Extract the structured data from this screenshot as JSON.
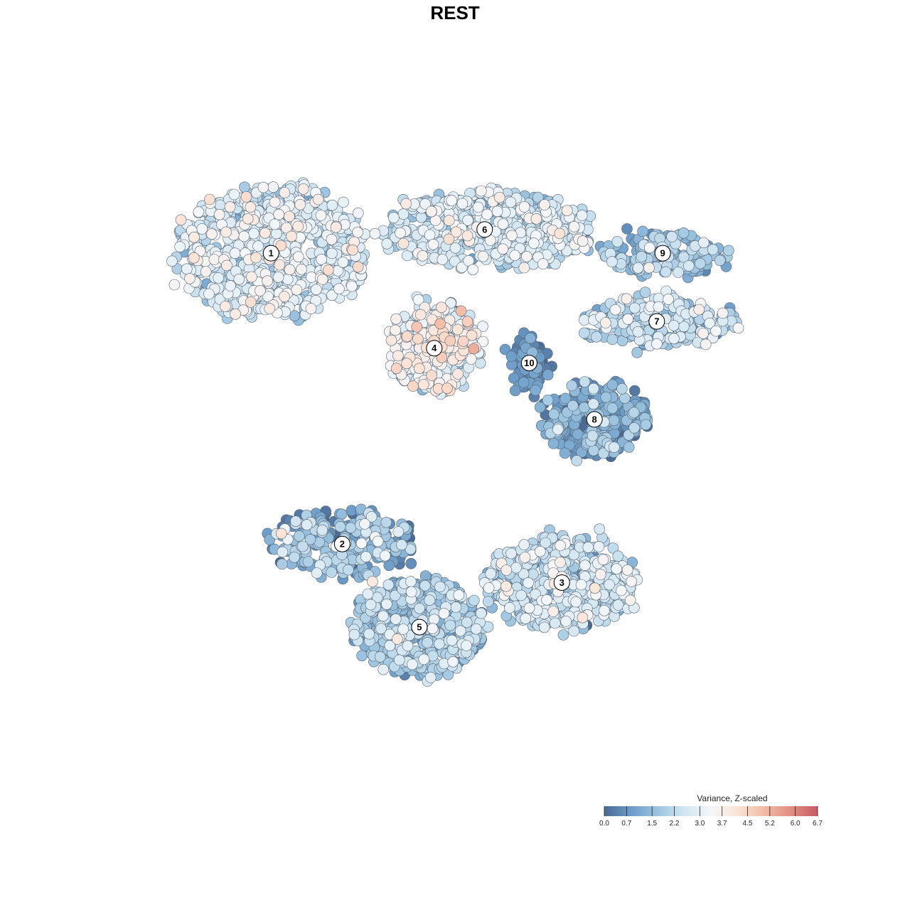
{
  "chart_data": {
    "type": "scatter",
    "title": "REST",
    "xlabel": "",
    "ylabel": "",
    "grid": false,
    "legend_position": "bottom-right",
    "color_scale": {
      "title": "Variance, Z-scaled",
      "min": 0.0,
      "max": 6.7,
      "ticks": [
        0.0,
        0.7,
        1.5,
        2.2,
        3.0,
        3.7,
        4.5,
        5.2,
        6.0,
        6.7
      ],
      "tick_labels": [
        "0.0",
        "0.7",
        "1.5",
        "2.2",
        "3.0",
        "3.7",
        "4.5",
        "5.2",
        "6.0",
        "6.7"
      ],
      "colors": [
        "#4a6a94",
        "#6c9cc8",
        "#9cc4e0",
        "#d2e6f2",
        "#f4f7fa",
        "#fbe3d6",
        "#f2bba5",
        "#e08e80",
        "#c85a66"
      ]
    },
    "clusters": [
      {
        "label": "1",
        "x": -6.2,
        "y": 6.8,
        "sx": 3.2,
        "sy": 2.2,
        "n": 700,
        "mean": 2.6,
        "sd": 0.7
      },
      {
        "label": "2",
        "x": -3.8,
        "y": -3.0,
        "sx": 2.4,
        "sy": 1.1,
        "n": 260,
        "mean": 1.3,
        "sd": 0.9
      },
      {
        "label": "3",
        "x": 3.6,
        "y": -4.3,
        "sx": 2.6,
        "sy": 1.5,
        "n": 500,
        "mean": 2.1,
        "sd": 0.8
      },
      {
        "label": "4",
        "x": -0.7,
        "y": 3.6,
        "sx": 1.5,
        "sy": 1.5,
        "n": 300,
        "mean": 3.1,
        "sd": 0.8
      },
      {
        "label": "5",
        "x": -1.2,
        "y": -5.8,
        "sx": 2.2,
        "sy": 1.6,
        "n": 520,
        "mean": 1.7,
        "sd": 0.7
      },
      {
        "label": "6",
        "x": 1.0,
        "y": 7.6,
        "sx": 3.6,
        "sy": 1.2,
        "n": 560,
        "mean": 2.4,
        "sd": 0.7
      },
      {
        "label": "7",
        "x": 6.8,
        "y": 4.5,
        "sx": 2.6,
        "sy": 0.8,
        "n": 230,
        "mean": 2.1,
        "sd": 0.7
      },
      {
        "label": "8",
        "x": 4.7,
        "y": 1.2,
        "sx": 1.8,
        "sy": 1.2,
        "n": 280,
        "mean": 1.0,
        "sd": 0.8
      },
      {
        "label": "9",
        "x": 7.0,
        "y": 6.8,
        "sx": 2.0,
        "sy": 0.7,
        "n": 170,
        "mean": 1.6,
        "sd": 0.6
      },
      {
        "label": "10",
        "x": 2.5,
        "y": 3.1,
        "sx": 0.6,
        "sy": 0.9,
        "n": 90,
        "mean": 0.4,
        "sd": 0.4
      }
    ],
    "xlim": [
      -11.5,
      11.5
    ],
    "ylim": [
      -11.5,
      11.5
    ]
  }
}
